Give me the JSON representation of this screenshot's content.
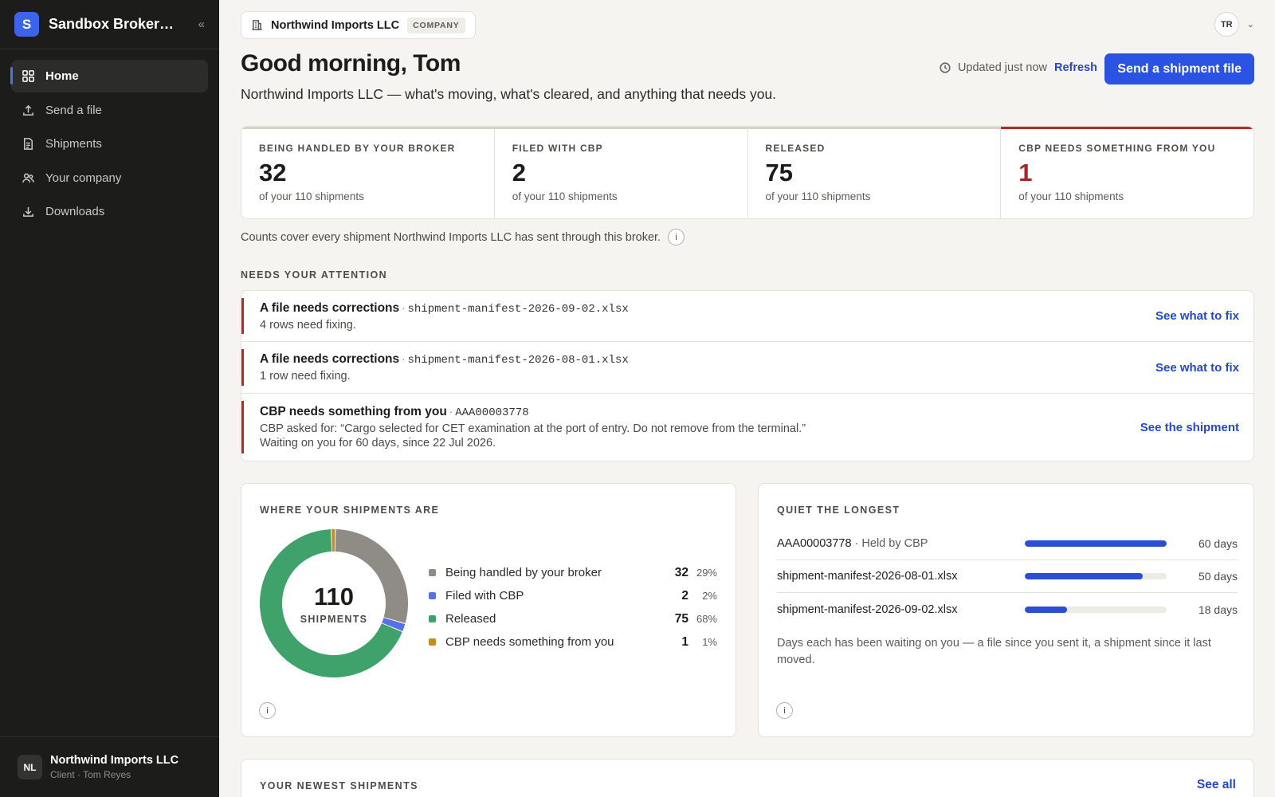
{
  "brand": {
    "logo_letter": "S",
    "name": "Sandbox Brokerage",
    "collapse_icon": "double-chevron-left-icon"
  },
  "nav": {
    "items": [
      {
        "label": "Home",
        "icon": "grid-icon",
        "active": true
      },
      {
        "label": "Send a file",
        "icon": "upload-icon",
        "active": false
      },
      {
        "label": "Shipments",
        "icon": "document-icon",
        "active": false
      },
      {
        "label": "Your company",
        "icon": "users-icon",
        "active": false
      },
      {
        "label": "Downloads",
        "icon": "download-icon",
        "active": false
      }
    ]
  },
  "account": {
    "initials": "NL",
    "name": "Northwind Imports LLC",
    "role": "Client · Tom Reyes"
  },
  "header": {
    "company": "Northwind Imports LLC",
    "company_tag": "COMPANY",
    "user_initials": "TR",
    "greeting": "Good morning, Tom",
    "subtitle": "Northwind Imports LLC — what's moving, what's cleared, and anything that needs you.",
    "updated": "Updated just now",
    "refresh": "Refresh",
    "primary_action": "Send a shipment file"
  },
  "stats": [
    {
      "label": "BEING HANDLED BY YOUR BROKER",
      "value": "32",
      "sub": "of your 110 shipments"
    },
    {
      "label": "FILED WITH CBP",
      "value": "2",
      "sub": "of your 110 shipments"
    },
    {
      "label": "RELEASED",
      "value": "75",
      "sub": "of your 110 shipments"
    },
    {
      "label": "CBP NEEDS SOMETHING FROM YOU",
      "value": "1",
      "sub": "of your 110 shipments"
    }
  ],
  "counts_note": "Counts cover every shipment Northwind Imports LLC has sent through this broker.",
  "info_glyph": "i",
  "attention": {
    "label": "NEEDS YOUR ATTENTION",
    "items": [
      {
        "title": "A file needs corrections",
        "ref": "shipment-manifest-2026-09-02.xlsx",
        "desc": "4 rows need fixing.",
        "desc2": "",
        "action": "See what to fix"
      },
      {
        "title": "A file needs corrections",
        "ref": "shipment-manifest-2026-08-01.xlsx",
        "desc": "1 row need fixing.",
        "desc2": "",
        "action": "See what to fix"
      },
      {
        "title": "CBP needs something from you",
        "ref": "AAA00003778",
        "desc": "CBP asked for: “Cargo selected for CET examination at the port of entry. Do not remove from the terminal.”",
        "desc2": "Waiting on you for 60 days, since 22 Jul 2026.",
        "action": "See the shipment"
      }
    ]
  },
  "distribution": {
    "label": "WHERE YOUR SHIPMENTS ARE",
    "total": "110",
    "unit": "SHIPMENTS"
  },
  "chart_data": {
    "type": "pie",
    "title": "WHERE YOUR SHIPMENTS ARE",
    "center_label": "110 SHIPMENTS",
    "categories": [
      "Being handled by your broker",
      "Filed with CBP",
      "Released",
      "CBP needs something from you"
    ],
    "values": [
      32,
      2,
      75,
      1
    ],
    "percents": [
      "29%",
      "2%",
      "68%",
      "1%"
    ],
    "colors": [
      "#8f8c85",
      "#5671e6",
      "#3fa26a",
      "#c58b1c"
    ],
    "donut": true
  },
  "quiet": {
    "label": "QUIET THE LONGEST",
    "rows": [
      {
        "name": "AAA00003778",
        "note": "· Held by CBP",
        "days": 60,
        "days_label": "60 days"
      },
      {
        "name": "shipment-manifest-2026-08-01.xlsx",
        "note": "",
        "days": 50,
        "days_label": "50 days"
      },
      {
        "name": "shipment-manifest-2026-09-02.xlsx",
        "note": "",
        "days": 18,
        "days_label": "18 days"
      }
    ],
    "footnote": "Days each has been waiting on you — a file since you sent it, a shipment since it last moved."
  },
  "newest": {
    "label": "YOUR NEWEST SHIPMENTS",
    "see_all": "See all"
  },
  "colors": {
    "accent": "#2a52e3",
    "alert": "#b42c2c",
    "sidebar": "#1c1c1b"
  }
}
